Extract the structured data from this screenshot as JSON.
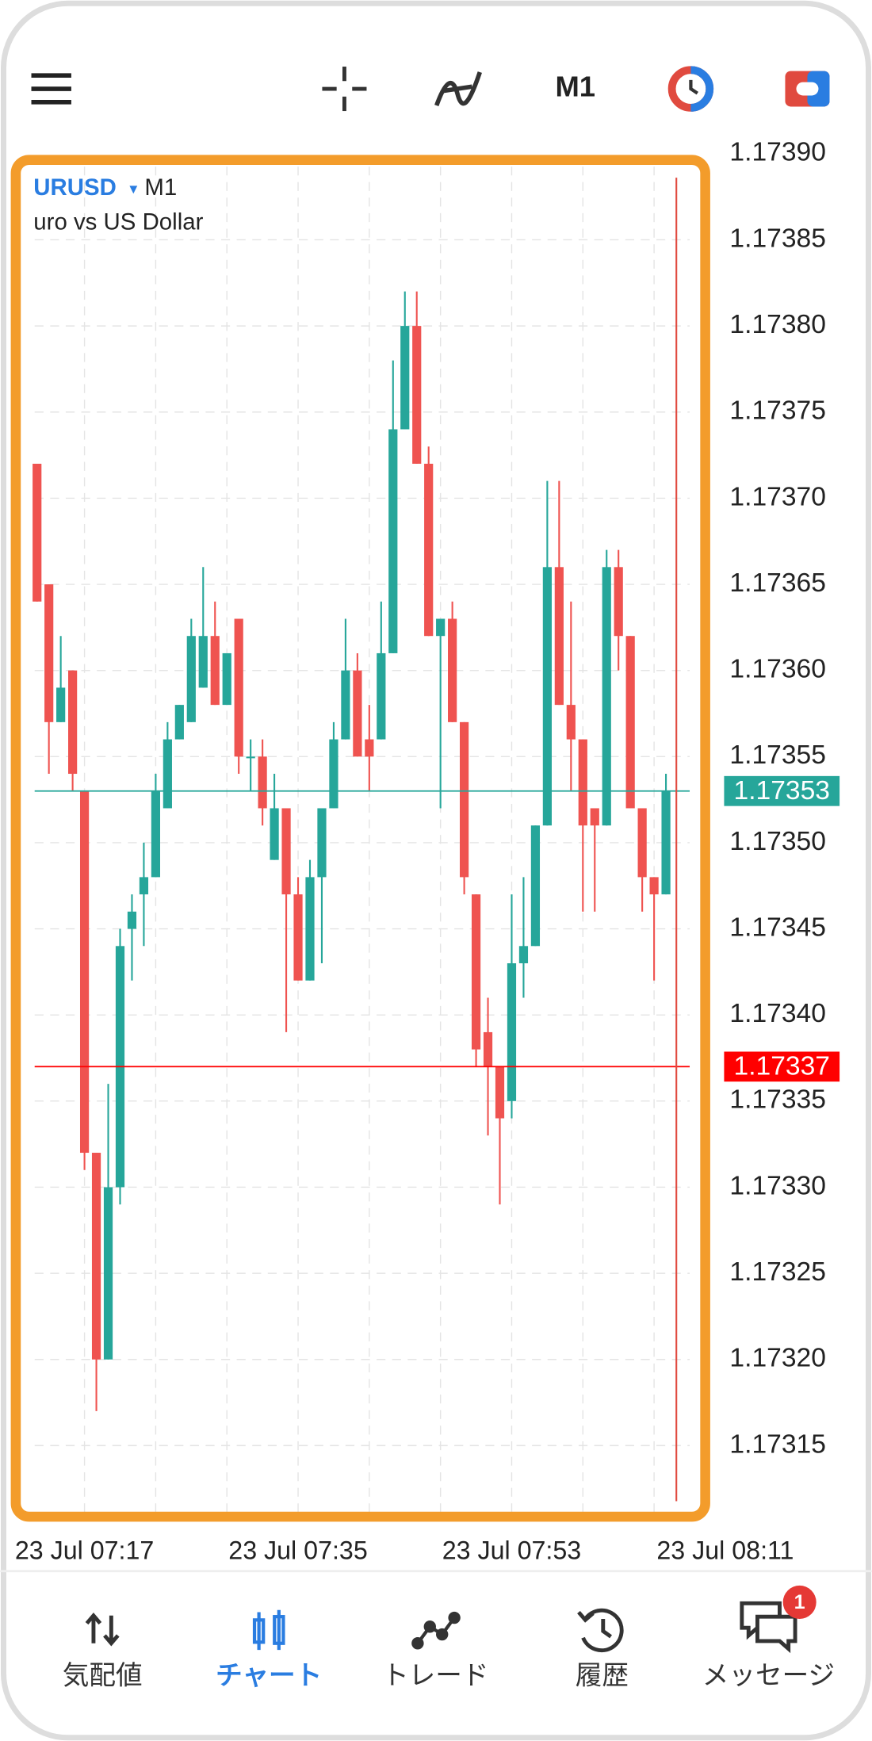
{
  "toolbar": {
    "timeframe": "M1"
  },
  "chart_data": {
    "type": "candlestick",
    "symbol": "URUSD",
    "timeframe": "M1",
    "description": "uro vs US Dollar",
    "up_color": "#26a69a",
    "down_color": "#ef5350",
    "grid": true,
    "open": [
      1.17372,
      1.17365,
      1.17357,
      1.1736,
      1.17353,
      1.17332,
      1.1732,
      1.1733,
      1.17345,
      1.17347,
      1.17348,
      1.17352,
      1.17356,
      1.17357,
      1.17359,
      1.17362,
      1.17358,
      1.17363,
      1.17355,
      1.17355,
      1.17349,
      1.17352,
      1.17347,
      1.17342,
      1.17348,
      1.17352,
      1.17356,
      1.1736,
      1.17356,
      1.17356,
      1.17361,
      1.17374,
      1.1738,
      1.17372,
      1.17362,
      1.17363,
      1.17357,
      1.17347,
      1.17339,
      1.17337,
      1.17335,
      1.17343,
      1.17344,
      1.17351,
      1.17366,
      1.17358,
      1.17356,
      1.17352,
      1.17351,
      1.17366,
      1.17362,
      1.17352,
      1.17348,
      1.17347
    ],
    "high": [
      1.17372,
      1.17365,
      1.17362,
      1.1736,
      1.17353,
      1.17332,
      1.17336,
      1.17345,
      1.17347,
      1.1735,
      1.17354,
      1.17357,
      1.17358,
      1.17363,
      1.17366,
      1.17364,
      1.17361,
      1.17363,
      1.17356,
      1.17356,
      1.17354,
      1.17352,
      1.17348,
      1.17349,
      1.17352,
      1.17357,
      1.17363,
      1.17361,
      1.17358,
      1.17364,
      1.17378,
      1.17382,
      1.17382,
      1.17373,
      1.17363,
      1.17364,
      1.17357,
      1.17347,
      1.17341,
      1.17337,
      1.17347,
      1.17348,
      1.17351,
      1.17371,
      1.17371,
      1.17364,
      1.17356,
      1.17352,
      1.17367,
      1.17367,
      1.17362,
      1.17352,
      1.17348,
      1.17354
    ],
    "low": [
      1.17364,
      1.17354,
      1.17357,
      1.17353,
      1.17331,
      1.17317,
      1.1732,
      1.17329,
      1.17342,
      1.17344,
      1.17348,
      1.17352,
      1.17356,
      1.17357,
      1.17359,
      1.17358,
      1.17358,
      1.17354,
      1.17353,
      1.17351,
      1.17349,
      1.17339,
      1.17342,
      1.17342,
      1.17343,
      1.17352,
      1.17356,
      1.17355,
      1.17353,
      1.17356,
      1.17361,
      1.17374,
      1.17372,
      1.17362,
      1.17352,
      1.17357,
      1.17347,
      1.17337,
      1.17333,
      1.17329,
      1.17334,
      1.17341,
      1.17344,
      1.17351,
      1.17358,
      1.17353,
      1.17346,
      1.17346,
      1.17351,
      1.1736,
      1.17352,
      1.17346,
      1.17342,
      1.17347
    ],
    "close": [
      1.17364,
      1.17357,
      1.17359,
      1.17354,
      1.17332,
      1.1732,
      1.1733,
      1.17344,
      1.17346,
      1.17348,
      1.17353,
      1.17356,
      1.17358,
      1.17362,
      1.17362,
      1.17358,
      1.17361,
      1.17355,
      1.17355,
      1.17352,
      1.17352,
      1.17347,
      1.17342,
      1.17348,
      1.17352,
      1.17356,
      1.1736,
      1.17355,
      1.17355,
      1.17361,
      1.17374,
      1.1738,
      1.17372,
      1.17362,
      1.17363,
      1.17357,
      1.17348,
      1.17338,
      1.17337,
      1.17334,
      1.17343,
      1.17344,
      1.17351,
      1.17366,
      1.17358,
      1.17356,
      1.17351,
      1.17351,
      1.17366,
      1.17362,
      1.17352,
      1.17348,
      1.17347,
      1.17353
    ],
    "bid": 1.17353,
    "bid_color": "#26a69a",
    "ask": 1.17337,
    "ask_color": "#ff0000",
    "xlim": [
      -0.2,
      55
    ],
    "xticks": [
      {
        "value": 4,
        "label": "23 Jul 07:17"
      },
      {
        "value": 22,
        "label": "23 Jul 07:35"
      },
      {
        "value": 40,
        "label": "23 Jul 07:53"
      },
      {
        "value": 58,
        "label": "23 Jul 08:11"
      }
    ],
    "ylim": [
      1.17311,
      1.17391
    ],
    "yticks": [
      {
        "value": 1.1739,
        "label": "1.17390"
      },
      1.17385,
      {
        "value": 1.1738,
        "label": "1.17380"
      },
      1.17375,
      {
        "value": 1.1737,
        "label": "1.17370"
      },
      1.17365,
      {
        "value": 1.1736,
        "label": "1.17360"
      },
      1.17355,
      {
        "value": 1.1735,
        "label": "1.17350"
      },
      1.17345,
      {
        "value": 1.1734,
        "label": "1.17340"
      },
      1.17335,
      {
        "value": 1.1733,
        "label": "1.17330"
      },
      1.17325,
      {
        "value": 1.1732,
        "label": "1.17320"
      },
      1.17315
    ]
  },
  "nav": {
    "items": [
      {
        "label": "気配値"
      },
      {
        "label": "チャート"
      },
      {
        "label": "トレード"
      },
      {
        "label": "履歴"
      },
      {
        "label": "メッセージ"
      }
    ],
    "active": 1,
    "badge": "1"
  }
}
